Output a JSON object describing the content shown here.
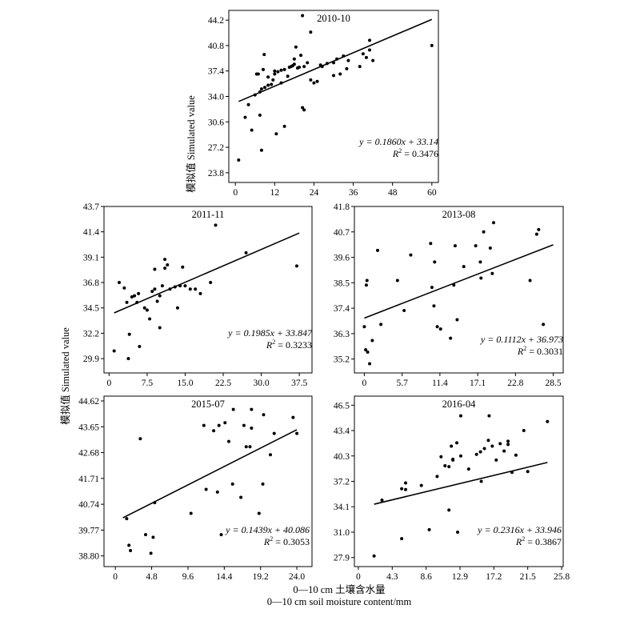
{
  "figure": {
    "ylabel": "模拟值 Simulated value",
    "xlabel_cn": "0—10 cm 土壤含水量",
    "xlabel_en": "0—10 cm soil moisture content/mm"
  },
  "chart_data": [
    {
      "type": "scatter",
      "title": "2010-10",
      "xlim": [
        -2,
        62
      ],
      "ylim": [
        22.5,
        45.5
      ],
      "xticks": [
        "0",
        "12",
        "24",
        "36",
        "48",
        "60"
      ],
      "yticks": [
        "23.8",
        "27.2",
        "30.6",
        "34.0",
        "37.4",
        "40.8",
        "44.2"
      ],
      "grid": false,
      "fit": {
        "slope": 0.186,
        "intercept": 33.14,
        "x_range": [
          1,
          60
        ],
        "equation": "y = 0.1860x + 33.14",
        "r2_label": "R",
        "r2_value": "= 0.3476"
      },
      "points": [
        [
          1,
          25.5
        ],
        [
          3,
          31.2
        ],
        [
          4,
          32.9
        ],
        [
          5,
          29.5
        ],
        [
          6,
          34.2
        ],
        [
          6.5,
          37.0
        ],
        [
          7,
          37.0
        ],
        [
          7.5,
          31.5
        ],
        [
          7.5,
          34.6
        ],
        [
          8,
          26.8
        ],
        [
          8,
          35.0
        ],
        [
          8.5,
          37.6
        ],
        [
          8.8,
          39.6
        ],
        [
          9,
          35.2
        ],
        [
          10,
          35.5
        ],
        [
          10,
          36.6
        ],
        [
          11,
          35.6
        ],
        [
          11.5,
          36.2
        ],
        [
          12,
          37.0
        ],
        [
          12,
          37.4
        ],
        [
          12.5,
          29.0
        ],
        [
          13,
          37.3
        ],
        [
          14,
          37.5
        ],
        [
          14,
          35.8
        ],
        [
          15,
          37.6
        ],
        [
          15,
          30.0
        ],
        [
          16,
          36.7
        ],
        [
          16.5,
          37.9
        ],
        [
          17,
          38.0
        ],
        [
          17.5,
          38.1
        ],
        [
          18,
          38.3
        ],
        [
          18,
          39.0
        ],
        [
          18.5,
          40.6
        ],
        [
          19,
          37.8
        ],
        [
          19.5,
          37.9
        ],
        [
          20,
          39.5
        ],
        [
          20.5,
          44.8
        ],
        [
          20.5,
          32.5
        ],
        [
          21,
          32.2
        ],
        [
          21,
          38.0
        ],
        [
          22,
          38.5
        ],
        [
          23,
          42.6
        ],
        [
          23,
          36.2
        ],
        [
          24,
          35.8
        ],
        [
          25,
          36.0
        ],
        [
          26,
          38.2
        ],
        [
          26.5,
          38.0
        ],
        [
          28,
          38.4
        ],
        [
          30,
          36.8
        ],
        [
          30,
          38.5
        ],
        [
          31,
          39.0
        ],
        [
          32,
          37.0
        ],
        [
          33,
          39.4
        ],
        [
          34,
          37.7
        ],
        [
          34.5,
          38.8
        ],
        [
          38,
          38.0
        ],
        [
          39,
          39.7
        ],
        [
          40,
          39.2
        ],
        [
          41,
          40.2
        ],
        [
          41,
          41.5
        ],
        [
          42,
          38.8
        ],
        [
          60,
          40.8
        ]
      ]
    },
    {
      "type": "scatter",
      "title": "2011-11",
      "xlim": [
        -1,
        40
      ],
      "ylim": [
        28.6,
        43.7
      ],
      "xticks": [
        "0",
        "7.5",
        "15.0",
        "22.5",
        "30.0",
        "37.5"
      ],
      "yticks": [
        "29.9",
        "32.2",
        "34.5",
        "36.8",
        "39.1",
        "41.4",
        "43.7"
      ],
      "grid": false,
      "fit": {
        "slope": 0.1985,
        "intercept": 33.847,
        "x_range": [
          1,
          37.5
        ],
        "equation": "y = 0.1985x + 33.847",
        "r2_label": "R",
        "r2_value": "= 0.3233"
      },
      "points": [
        [
          1,
          30.6
        ],
        [
          2,
          36.8
        ],
        [
          3,
          36.3
        ],
        [
          3.5,
          35.0
        ],
        [
          3.8,
          29.9
        ],
        [
          4,
          32.1
        ],
        [
          4.5,
          35.5
        ],
        [
          5,
          35.6
        ],
        [
          5.5,
          35.0
        ],
        [
          5.8,
          35.8
        ],
        [
          6,
          31.0
        ],
        [
          7,
          34.5
        ],
        [
          7.5,
          34.3
        ],
        [
          8,
          33.5
        ],
        [
          8.5,
          36.0
        ],
        [
          9,
          38.0
        ],
        [
          9,
          36.2
        ],
        [
          9.5,
          35.1
        ],
        [
          10,
          32.7
        ],
        [
          10,
          35.6
        ],
        [
          10.5,
          36.5
        ],
        [
          11,
          38.1
        ],
        [
          11,
          38.9
        ],
        [
          11.5,
          38.4
        ],
        [
          12,
          36.2
        ],
        [
          13,
          36.4
        ],
        [
          13.5,
          34.5
        ],
        [
          14,
          36.5
        ],
        [
          14.5,
          38.2
        ],
        [
          15,
          36.5
        ],
        [
          16,
          36.2
        ],
        [
          17,
          36.2
        ],
        [
          18,
          35.8
        ],
        [
          20,
          36.8
        ],
        [
          21,
          42.0
        ],
        [
          27,
          39.5
        ],
        [
          37,
          38.3
        ]
      ]
    },
    {
      "type": "scatter",
      "title": "2013-08",
      "xlim": [
        -1.5,
        30
      ],
      "ylim": [
        34.6,
        41.8
      ],
      "xticks": [
        "0",
        "5.7",
        "11.4",
        "17.1",
        "22.8",
        "28.5"
      ],
      "yticks": [
        "35.2",
        "36.3",
        "37.4",
        "38.5",
        "39.6",
        "40.7",
        "41.8"
      ],
      "grid": false,
      "fit": {
        "slope": 0.1112,
        "intercept": 36.973,
        "x_range": [
          0,
          28.5
        ],
        "equation": "y = 0.1112x + 36.973",
        "r2_label": "R",
        "r2_value": "= 0.3031"
      },
      "points": [
        [
          0,
          36.6
        ],
        [
          0.2,
          35.6
        ],
        [
          0.3,
          38.4
        ],
        [
          0.4,
          38.6
        ],
        [
          0.5,
          35.5
        ],
        [
          0.8,
          35.0
        ],
        [
          1.2,
          36.0
        ],
        [
          2,
          39.9
        ],
        [
          2.5,
          36.7
        ],
        [
          5,
          38.6
        ],
        [
          6,
          37.3
        ],
        [
          7,
          39.7
        ],
        [
          10,
          40.2
        ],
        [
          10.2,
          38.3
        ],
        [
          10.5,
          37.5
        ],
        [
          10.6,
          39.4
        ],
        [
          11,
          36.6
        ],
        [
          11.5,
          36.5
        ],
        [
          13,
          36.1
        ],
        [
          13.5,
          38.4
        ],
        [
          13.7,
          40.1
        ],
        [
          14,
          36.9
        ],
        [
          15,
          39.2
        ],
        [
          16.8,
          40.1
        ],
        [
          17.5,
          39.4
        ],
        [
          17.6,
          38.7
        ],
        [
          18,
          40.7
        ],
        [
          19,
          40.0
        ],
        [
          19.3,
          38.9
        ],
        [
          19.5,
          41.1
        ],
        [
          25,
          38.6
        ],
        [
          26,
          40.6
        ],
        [
          26.3,
          40.8
        ],
        [
          27,
          36.7
        ]
      ]
    },
    {
      "type": "scatter",
      "title": "2015-07",
      "xlim": [
        -1.5,
        26
      ],
      "ylim": [
        38.4,
        44.8
      ],
      "xticks": [
        "0",
        "4.8",
        "9.6",
        "14.4",
        "19.2",
        "24.0"
      ],
      "yticks": [
        "38.80",
        "39.77",
        "40.74",
        "41.71",
        "42.68",
        "43.65",
        "44.62"
      ],
      "grid": false,
      "fit": {
        "slope": 0.1439,
        "intercept": 40.086,
        "x_range": [
          1,
          24
        ],
        "equation": "y = 0.1439x + 40.086",
        "r2_label": "R",
        "r2_value": "= 0.3053"
      },
      "points": [
        [
          1.5,
          40.2
        ],
        [
          1.8,
          39.2
        ],
        [
          2,
          39.0
        ],
        [
          3.3,
          43.2
        ],
        [
          4,
          39.6
        ],
        [
          4.7,
          38.9
        ],
        [
          5,
          39.5
        ],
        [
          5.2,
          40.8
        ],
        [
          10,
          40.4
        ],
        [
          11.7,
          43.7
        ],
        [
          12,
          41.3
        ],
        [
          13,
          43.5
        ],
        [
          13.5,
          41.2
        ],
        [
          13.7,
          43.7
        ],
        [
          14,
          39.6
        ],
        [
          14.5,
          43.8
        ],
        [
          15,
          43.1
        ],
        [
          15.5,
          41.5
        ],
        [
          15.6,
          44.3
        ],
        [
          16.6,
          41.0
        ],
        [
          17,
          43.7
        ],
        [
          17.3,
          42.9
        ],
        [
          17.8,
          42.9
        ],
        [
          18,
          43.6
        ],
        [
          18,
          44.3
        ],
        [
          19,
          40.4
        ],
        [
          19.5,
          41.5
        ],
        [
          19.6,
          44.1
        ],
        [
          20.5,
          42.6
        ],
        [
          21,
          43.4
        ],
        [
          23.5,
          44.0
        ],
        [
          24,
          43.4
        ]
      ]
    },
    {
      "type": "scatter",
      "title": "2016-04",
      "xlim": [
        -0.5,
        26
      ],
      "ylim": [
        26.8,
        47.6
      ],
      "xticks": [
        "0",
        "4.3",
        "8.6",
        "12.9",
        "17.2",
        "21.5",
        "25.8"
      ],
      "yticks": [
        "27.9",
        "31.0",
        "34.1",
        "37.2",
        "40.3",
        "43.4",
        "46.5"
      ],
      "grid": false,
      "fit": {
        "slope": 0.2316,
        "intercept": 33.946,
        "x_range": [
          2,
          24
        ],
        "equation": "y = 0.2316x + 33.946",
        "r2_label": "R",
        "r2_value": "= 0.3867"
      },
      "points": [
        [
          2,
          28.1
        ],
        [
          3,
          34.9
        ],
        [
          5.5,
          30.2
        ],
        [
          5.5,
          36.3
        ],
        [
          6,
          36.2
        ],
        [
          6,
          37.0
        ],
        [
          8,
          36.7
        ],
        [
          9,
          31.3
        ],
        [
          10,
          37.8
        ],
        [
          10.5,
          40.2
        ],
        [
          11,
          39.1
        ],
        [
          11.5,
          33.7
        ],
        [
          11.5,
          39.0
        ],
        [
          11.8,
          41.5
        ],
        [
          12,
          39.8
        ],
        [
          12,
          39.9
        ],
        [
          12.5,
          41.9
        ],
        [
          12.6,
          31.0
        ],
        [
          13,
          45.2
        ],
        [
          13,
          40.3
        ],
        [
          14,
          38.7
        ],
        [
          15,
          40.5
        ],
        [
          15.5,
          40.8
        ],
        [
          15.6,
          37.2
        ],
        [
          16,
          41.2
        ],
        [
          16.5,
          42.2
        ],
        [
          16.6,
          45.2
        ],
        [
          17,
          41.5
        ],
        [
          17.5,
          39.8
        ],
        [
          18,
          41.8
        ],
        [
          18.5,
          40.9
        ],
        [
          19,
          42.1
        ],
        [
          19,
          41.7
        ],
        [
          19.5,
          38.3
        ],
        [
          20,
          40.4
        ],
        [
          21,
          43.4
        ],
        [
          21.5,
          38.4
        ],
        [
          24,
          44.5
        ]
      ]
    }
  ]
}
